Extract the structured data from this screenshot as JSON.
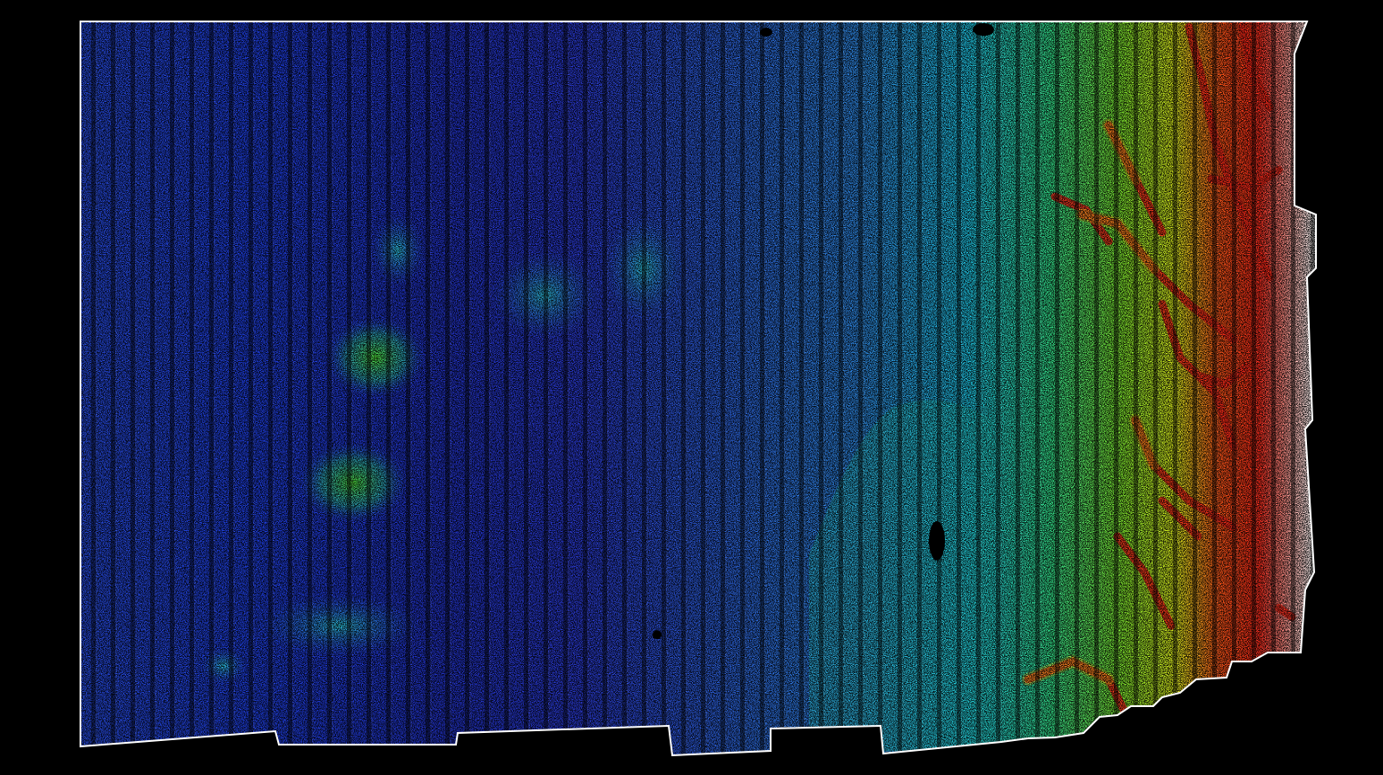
{
  "map": {
    "type": "lidar-elevation-point-cloud",
    "background_color": "#000000",
    "boundary_color": "#ffffff",
    "colormap": [
      "#1f2aa8",
      "#2a3fd6",
      "#2f7fe8",
      "#20d8e8",
      "#3cf060",
      "#e8f020",
      "#ff2a1a",
      "#ffffff"
    ],
    "low_color": "#2234c8",
    "mid_color": "#20d8e8",
    "high_color": "#ff2a1a",
    "peak_color": "#ffffff",
    "void_color": "#000000",
    "flightline_pattern": "vertical-stripes"
  }
}
